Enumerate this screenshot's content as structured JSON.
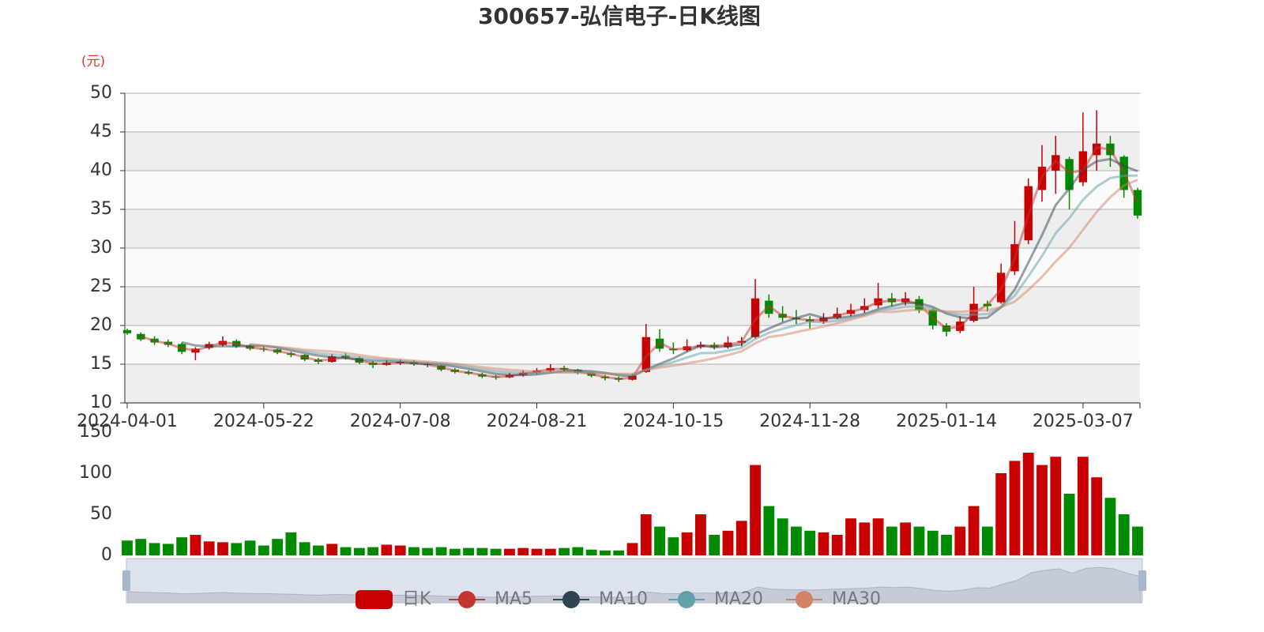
{
  "chart_data": {
    "type": "candlestick",
    "title": "300657-弘信电子-日K线图",
    "y_unit": "(元)",
    "categories": [
      "2024-04-01",
      null,
      null,
      null,
      null,
      null,
      null,
      null,
      null,
      null,
      "2024-05-22",
      null,
      null,
      null,
      null,
      null,
      null,
      null,
      null,
      null,
      "2024-07-08",
      null,
      null,
      null,
      null,
      null,
      null,
      null,
      null,
      null,
      "2024-08-21",
      null,
      null,
      null,
      null,
      null,
      null,
      null,
      null,
      null,
      "2024-10-15",
      null,
      null,
      null,
      null,
      null,
      null,
      null,
      null,
      null,
      "2024-11-28",
      null,
      null,
      null,
      null,
      null,
      null,
      null,
      null,
      null,
      "2025-01-14",
      null,
      null,
      null,
      null,
      null,
      null,
      null,
      null,
      null,
      "2025-03-07",
      null,
      null,
      null,
      null
    ],
    "candles": {
      "name": "日K",
      "up_color": "#c80000",
      "down_color": "#008a00",
      "values": [
        [
          19.4,
          19.0,
          18.8,
          19.6
        ],
        [
          18.9,
          18.2,
          18.0,
          19.1
        ],
        [
          18.3,
          17.8,
          17.5,
          18.6
        ],
        [
          17.9,
          17.5,
          17.2,
          18.2
        ],
        [
          17.6,
          16.6,
          16.3,
          17.8
        ],
        [
          16.5,
          17.0,
          15.5,
          17.2
        ],
        [
          17.1,
          17.6,
          16.9,
          17.9
        ],
        [
          17.5,
          18.0,
          17.3,
          18.6
        ],
        [
          18.0,
          17.3,
          17.1,
          18.2
        ],
        [
          17.4,
          17.0,
          16.8,
          17.6
        ],
        [
          17.0,
          16.9,
          16.6,
          17.3
        ],
        [
          16.9,
          16.5,
          16.3,
          17.0
        ],
        [
          16.4,
          16.2,
          15.9,
          16.6
        ],
        [
          16.2,
          15.6,
          15.4,
          16.3
        ],
        [
          15.6,
          15.3,
          15.0,
          15.8
        ],
        [
          15.3,
          16.0,
          15.2,
          16.3
        ],
        [
          16.1,
          15.8,
          15.6,
          16.4
        ],
        [
          15.8,
          15.2,
          15.0,
          16.0
        ],
        [
          15.2,
          14.9,
          14.5,
          15.4
        ],
        [
          14.9,
          15.2,
          14.8,
          15.5
        ],
        [
          15.1,
          15.3,
          14.9,
          15.6
        ],
        [
          15.3,
          15.0,
          14.8,
          15.5
        ],
        [
          15.0,
          14.9,
          14.6,
          15.2
        ],
        [
          14.8,
          14.3,
          14.1,
          14.9
        ],
        [
          14.3,
          14.0,
          13.8,
          14.5
        ],
        [
          14.0,
          13.8,
          13.6,
          14.2
        ],
        [
          13.7,
          13.4,
          13.2,
          13.9
        ],
        [
          13.4,
          13.3,
          13.0,
          13.6
        ],
        [
          13.3,
          13.6,
          13.2,
          13.9
        ],
        [
          13.6,
          13.9,
          13.4,
          14.2
        ],
        [
          13.9,
          14.2,
          13.7,
          14.5
        ],
        [
          14.2,
          14.5,
          14.0,
          15.0
        ],
        [
          14.5,
          14.3,
          14.1,
          14.8
        ],
        [
          14.3,
          13.9,
          13.7,
          14.4
        ],
        [
          13.9,
          13.5,
          13.3,
          14.0
        ],
        [
          13.4,
          13.2,
          12.9,
          13.6
        ],
        [
          13.2,
          13.0,
          12.7,
          13.4
        ],
        [
          13.0,
          13.5,
          12.9,
          13.8
        ],
        [
          14.0,
          18.5,
          13.9,
          20.2
        ],
        [
          18.3,
          17.0,
          16.6,
          19.5
        ],
        [
          17.0,
          16.8,
          16.3,
          17.8
        ],
        [
          16.8,
          17.3,
          16.6,
          18.2
        ],
        [
          17.2,
          17.5,
          17.0,
          17.9
        ],
        [
          17.5,
          17.2,
          16.9,
          17.8
        ],
        [
          17.2,
          17.8,
          17.0,
          18.6
        ],
        [
          17.8,
          18.0,
          17.3,
          18.5
        ],
        [
          18.5,
          23.5,
          18.3,
          26.0
        ],
        [
          23.2,
          21.5,
          21.0,
          24.0
        ],
        [
          21.5,
          21.0,
          20.5,
          22.5
        ],
        [
          21.0,
          20.8,
          20.2,
          22.0
        ],
        [
          20.8,
          20.5,
          19.6,
          21.2
        ],
        [
          20.5,
          21.0,
          20.2,
          21.6
        ],
        [
          21.0,
          21.5,
          20.8,
          22.3
        ],
        [
          21.5,
          22.0,
          21.2,
          22.8
        ],
        [
          22.0,
          22.5,
          21.6,
          23.5
        ],
        [
          22.6,
          23.5,
          22.2,
          25.5
        ],
        [
          23.5,
          23.0,
          22.5,
          24.2
        ],
        [
          23.0,
          23.5,
          22.6,
          24.3
        ],
        [
          23.4,
          22.0,
          21.6,
          23.8
        ],
        [
          22.0,
          20.0,
          19.5,
          22.2
        ],
        [
          20.0,
          19.2,
          18.6,
          20.3
        ],
        [
          19.3,
          20.5,
          19.0,
          21.2
        ],
        [
          20.6,
          22.8,
          20.4,
          25.0
        ],
        [
          22.8,
          22.5,
          21.8,
          23.2
        ],
        [
          23.0,
          26.8,
          22.8,
          28.0
        ],
        [
          27.0,
          30.5,
          26.5,
          33.5
        ],
        [
          31.0,
          38.0,
          30.5,
          39.0
        ],
        [
          37.5,
          40.5,
          36.0,
          43.3
        ],
        [
          40.0,
          42.0,
          37.0,
          44.5
        ],
        [
          41.5,
          37.5,
          35.0,
          41.8
        ],
        [
          38.5,
          42.5,
          38.0,
          47.5
        ],
        [
          42.0,
          43.5,
          40.0,
          47.8
        ],
        [
          43.5,
          42.0,
          40.5,
          44.5
        ],
        [
          41.8,
          37.5,
          36.5,
          42.0
        ],
        [
          37.5,
          34.2,
          33.8,
          37.8
        ]
      ]
    },
    "series": [
      {
        "name": "MA5",
        "color": "#c23531",
        "values": [
          null,
          18.6,
          18.0,
          17.65,
          17.05,
          16.8,
          17.3,
          17.8,
          17.65,
          17.15,
          16.95,
          16.7,
          16.35,
          15.9,
          15.45,
          15.65,
          15.9,
          15.5,
          15.05,
          15.05,
          15.25,
          15.15,
          14.95,
          14.6,
          14.15,
          13.9,
          13.6,
          13.35,
          13.45,
          13.75,
          14.05,
          14.35,
          14.4,
          14.1,
          13.7,
          13.35,
          13.1,
          13.25,
          16.0,
          17.75,
          16.9,
          17.05,
          17.4,
          17.35,
          17.5,
          17.9,
          20.75,
          22.5,
          21.25,
          20.9,
          20.65,
          20.75,
          21.25,
          21.75,
          22.25,
          23.0,
          23.25,
          23.25,
          22.75,
          21.0,
          19.6,
          19.85,
          21.65,
          22.65,
          24.65,
          28.65,
          34.25,
          39.25,
          41.25,
          39.75,
          40.0,
          43.0,
          42.75,
          39.75,
          35.85
        ]
      },
      {
        "name": "MA10",
        "color": "#2f4554",
        "values": [
          null,
          null,
          null,
          null,
          17.82,
          17.42,
          17.3,
          17.34,
          17.3,
          17.38,
          17.36,
          17.14,
          16.78,
          16.44,
          16.1,
          15.92,
          15.78,
          15.58,
          15.44,
          15.42,
          15.28,
          15.12,
          15.06,
          14.94,
          14.7,
          14.4,
          14.08,
          13.76,
          13.62,
          13.6,
          13.68,
          13.9,
          14.1,
          14.16,
          14.08,
          13.88,
          13.58,
          13.42,
          14.34,
          15.04,
          15.76,
          16.62,
          17.42,
          17.16,
          17.32,
          17.56,
          18.8,
          19.6,
          20.36,
          20.96,
          21.46,
          20.96,
          20.96,
          21.16,
          21.5,
          22.1,
          22.5,
          22.9,
          22.9,
          22.4,
          21.54,
          21.04,
          20.9,
          21.0,
          22.36,
          24.62,
          28.12,
          31.66,
          35.56,
          37.7,
          40.1,
          41.2,
          41.5,
          40.6,
          39.94
        ]
      },
      {
        "name": "MA20",
        "color": "#61a0a8",
        "values": [
          null,
          null,
          null,
          null,
          null,
          null,
          null,
          null,
          null,
          17.49,
          17.38,
          17.18,
          16.92,
          16.66,
          16.42,
          16.28,
          16.12,
          15.88,
          15.69,
          15.59,
          15.44,
          15.29,
          15.19,
          15.07,
          14.88,
          14.62,
          14.34,
          14.09,
          13.95,
          13.88,
          13.86,
          13.95,
          14.02,
          14.03,
          13.96,
          13.83,
          13.66,
          13.59,
          14.3,
          14.8,
          15.29,
          15.86,
          16.42,
          16.46,
          16.75,
          17.11,
          18.26,
          19.06,
          19.56,
          20.05,
          20.49,
          20.42,
          20.62,
          20.96,
          21.37,
          21.94,
          22.12,
          22.42,
          22.47,
          22.18,
          21.68,
          21.41,
          21.4,
          21.48,
          22.37,
          23.85,
          26.35,
          28.97,
          31.92,
          33.87,
          36.23,
          37.93,
          39.04,
          39.34,
          39.38
        ]
      },
      {
        "name": "MA30",
        "color": "#d48265",
        "values": [
          null,
          null,
          null,
          null,
          null,
          null,
          null,
          null,
          null,
          17.6,
          17.39,
          17.22,
          17.06,
          16.87,
          16.74,
          16.64,
          16.46,
          16.18,
          15.94,
          15.76,
          15.6,
          15.45,
          15.32,
          15.19,
          15.06,
          14.84,
          14.6,
          14.41,
          14.28,
          14.15,
          14.04,
          13.99,
          13.93,
          13.89,
          13.84,
          13.78,
          13.74,
          13.76,
          14.25,
          14.56,
          14.82,
          15.1,
          15.42,
          15.75,
          16.18,
          16.66,
          17.71,
          18.51,
          18.76,
          19.14,
          19.51,
          19.88,
          20.28,
          20.76,
          21.23,
          21.78,
          21.73,
          21.93,
          22.03,
          21.95,
          21.82,
          21.77,
          21.9,
          21.95,
          22.38,
          23.08,
          24.58,
          26.28,
          28.28,
          30.03,
          32.36,
          34.66,
          36.58,
          38.08,
          38.82
        ]
      }
    ],
    "ylim": [
      10,
      50
    ],
    "yticks": [
      10,
      15,
      20,
      25,
      30,
      35,
      40,
      45,
      50
    ],
    "grid": true,
    "volume": {
      "values": [
        18,
        20,
        15,
        14,
        22,
        25,
        17,
        16,
        15,
        18,
        12,
        20,
        28,
        16,
        12,
        14,
        10,
        9,
        10,
        13,
        12,
        10,
        9,
        10,
        8,
        9,
        9,
        8,
        8,
        9,
        8,
        8,
        9,
        10,
        7,
        6,
        6,
        15,
        50,
        35,
        22,
        28,
        50,
        25,
        30,
        42,
        110,
        60,
        45,
        35,
        30,
        28,
        25,
        45,
        40,
        45,
        35,
        40,
        35,
        30,
        25,
        35,
        60,
        35,
        100,
        115,
        125,
        110,
        120,
        75,
        120,
        95,
        70,
        50,
        35
      ],
      "ylim": [
        0,
        150
      ],
      "yticks": [
        0,
        50,
        100,
        150
      ]
    },
    "legend": "bottom"
  }
}
